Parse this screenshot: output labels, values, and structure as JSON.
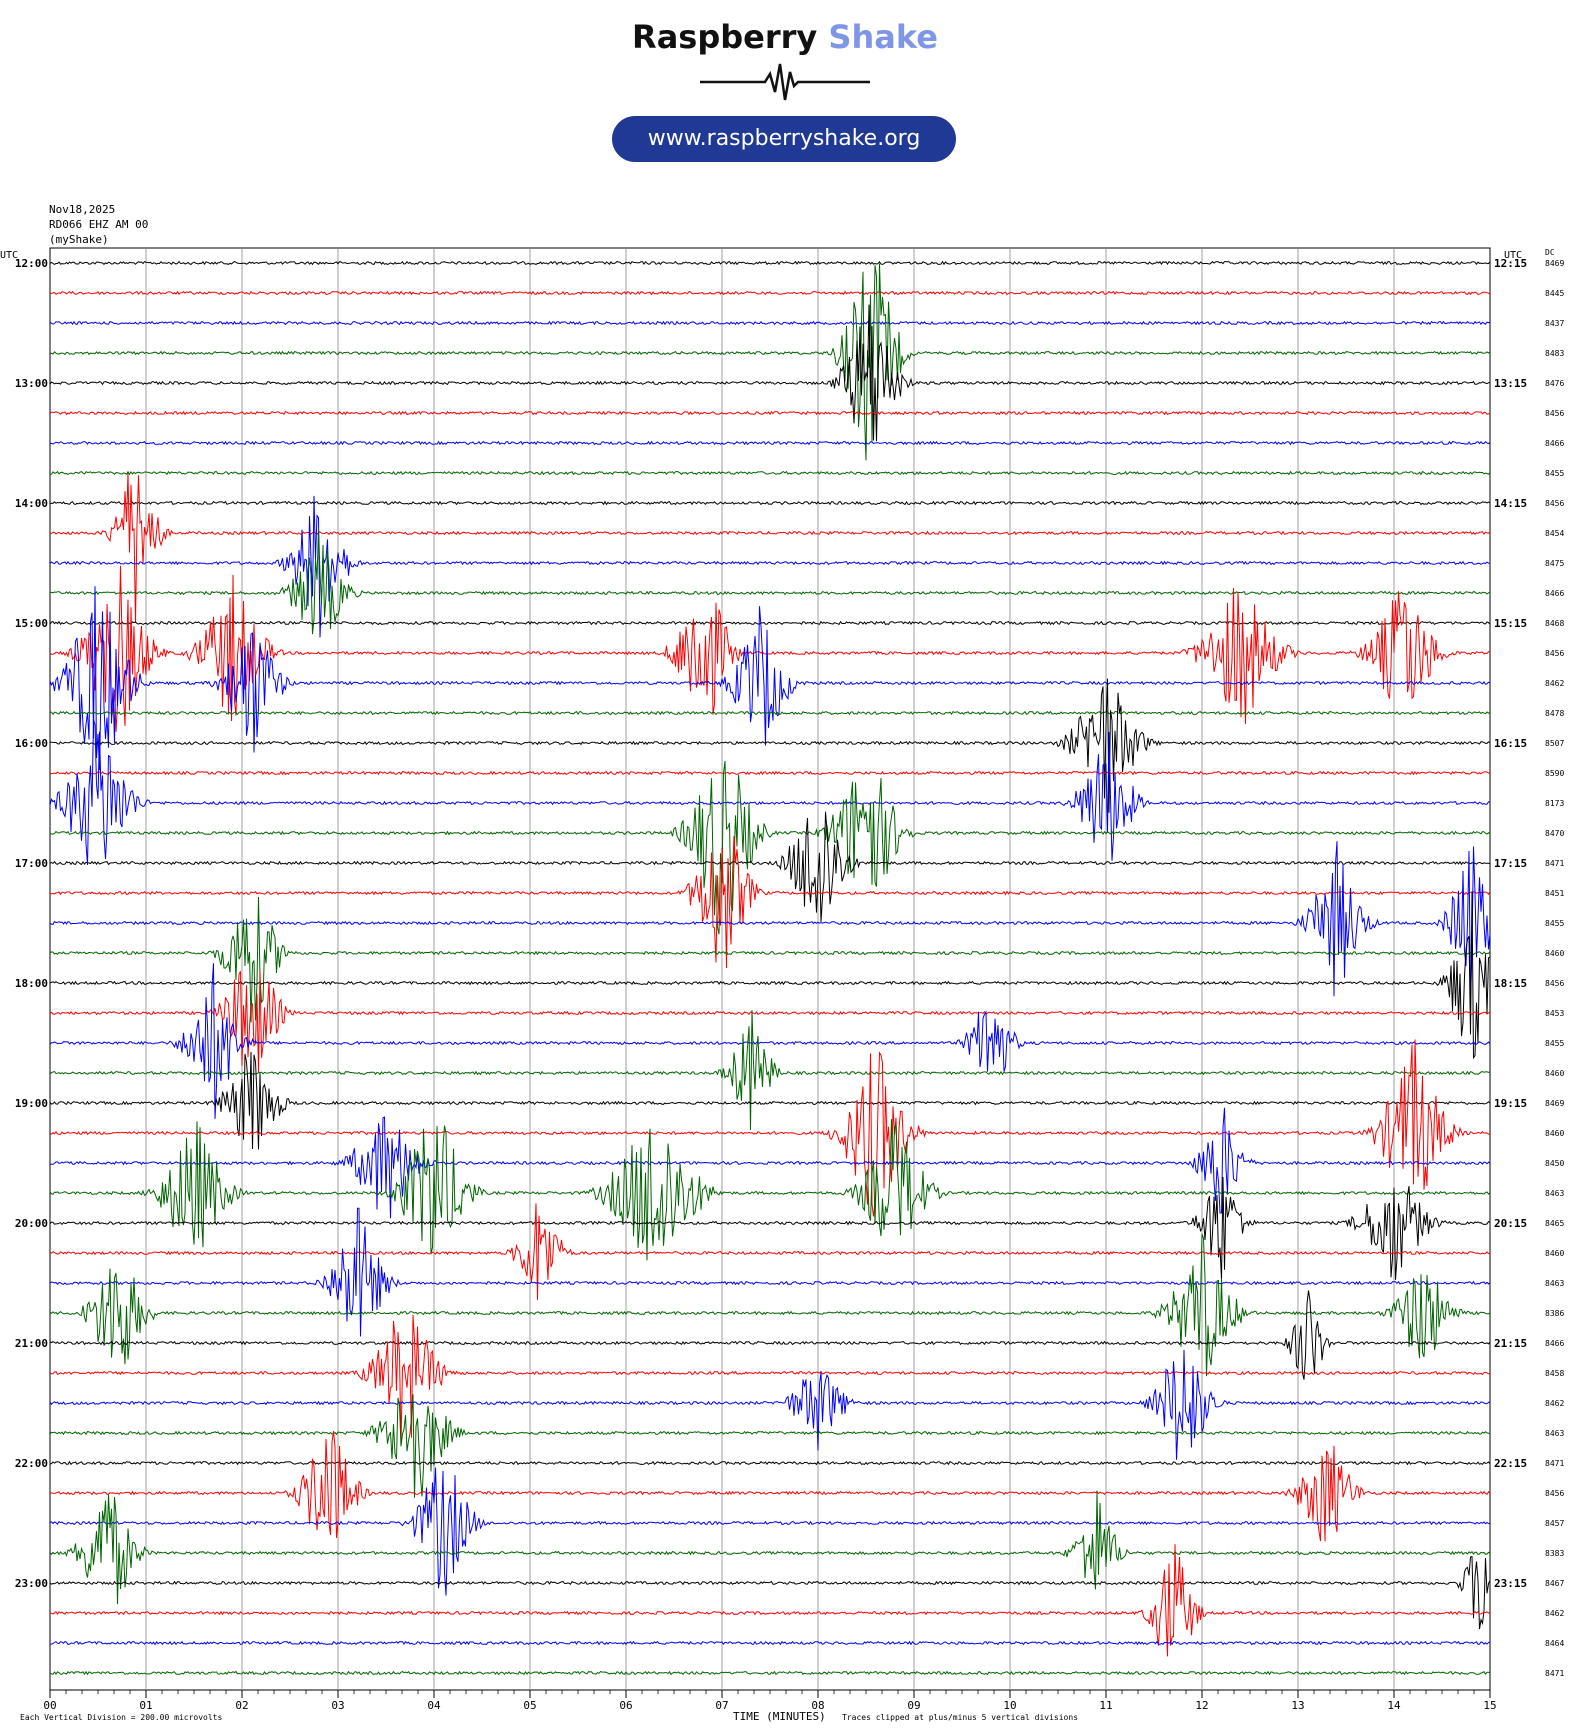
{
  "branding": {
    "title_part1": "Raspberry",
    "title_part2": "Shake",
    "url": "www.raspberryshake.org",
    "accent_color": "#7f96e6",
    "badge_color": "#1f3995"
  },
  "header": {
    "date": "Nov18,2025",
    "station": "RD066 EHZ AM 00",
    "network": "(myShake)"
  },
  "axis": {
    "left_label": "UTC",
    "right_label": "UTC",
    "dc_label": "DC",
    "x_label": "TIME (MINUTES)",
    "footer_left": "Each Vertical Division =  200.00 microvolts",
    "footer_right": "Traces clipped at plus/minus 5 vertical divisions"
  },
  "chart_data": {
    "type": "helicorder",
    "x_ticks": [
      "00",
      "01",
      "02",
      "03",
      "04",
      "05",
      "06",
      "07",
      "08",
      "09",
      "10",
      "11",
      "12",
      "13",
      "14",
      "15"
    ],
    "xlim_minutes": [
      0,
      15
    ],
    "grid": true,
    "colors": [
      "#000000",
      "#ff0000",
      "#0000ff",
      "#006400"
    ],
    "left_times": [
      "12:00",
      "13:00",
      "14:00",
      "15:00",
      "16:00",
      "17:00",
      "18:00",
      "19:00",
      "20:00",
      "21:00",
      "22:00",
      "23:00"
    ],
    "right_times": [
      "12:15",
      "13:15",
      "14:15",
      "15:15",
      "16:15",
      "17:15",
      "18:15",
      "19:15",
      "20:15",
      "21:15",
      "22:15",
      "23:15"
    ],
    "dc_values": [
      "8469",
      "8445",
      "8437",
      "8483",
      "8476",
      "8456",
      "8466",
      "8455",
      "8456",
      "8454",
      "8475",
      "8466",
      "8468",
      "8456",
      "8462",
      "8478",
      "8507",
      "8590",
      "8173",
      "8470",
      "8471",
      "8451",
      "8455",
      "8460",
      "8456",
      "8453",
      "8455",
      "8460",
      "8469",
      "8460",
      "8450",
      "8463",
      "8465",
      "8460",
      "8463",
      "8386",
      "8466",
      "8458",
      "8462",
      "8463",
      "8471",
      "8456",
      "8457",
      "8383",
      "8467",
      "8462",
      "8464",
      "8471"
    ],
    "events": [
      {
        "line": 3,
        "minute": 8.55,
        "amplitude": 8,
        "duration": 0.5
      },
      {
        "line": 4,
        "minute": 8.55,
        "amplitude": 6,
        "duration": 0.5
      },
      {
        "line": 9,
        "minute": 0.9,
        "amplitude": 6,
        "duration": 0.4
      },
      {
        "line": 10,
        "minute": 2.8,
        "amplitude": 5,
        "duration": 0.5
      },
      {
        "line": 11,
        "minute": 2.8,
        "amplitude": 4,
        "duration": 0.5
      },
      {
        "line": 13,
        "minute": 0.7,
        "amplitude": 6,
        "duration": 0.6
      },
      {
        "line": 13,
        "minute": 1.9,
        "amplitude": 5,
        "duration": 0.6
      },
      {
        "line": 14,
        "minute": 0.5,
        "amplitude": 7,
        "duration": 0.6
      },
      {
        "line": 14,
        "minute": 2.1,
        "amplitude": 5,
        "duration": 0.5
      },
      {
        "line": 13,
        "minute": 6.8,
        "amplitude": 6,
        "duration": 0.5
      },
      {
        "line": 14,
        "minute": 7.4,
        "amplitude": 5,
        "duration": 0.5
      },
      {
        "line": 13,
        "minute": 12.4,
        "amplitude": 5,
        "duration": 0.7
      },
      {
        "line": 13,
        "minute": 14.1,
        "amplitude": 5,
        "duration": 0.6
      },
      {
        "line": 16,
        "minute": 11.0,
        "amplitude": 5,
        "duration": 0.6
      },
      {
        "line": 18,
        "minute": 0.5,
        "amplitude": 6,
        "duration": 0.6
      },
      {
        "line": 18,
        "minute": 11.0,
        "amplitude": 5,
        "duration": 0.5
      },
      {
        "line": 19,
        "minute": 7.0,
        "amplitude": 7,
        "duration": 0.6
      },
      {
        "line": 19,
        "minute": 8.5,
        "amplitude": 6,
        "duration": 0.6
      },
      {
        "line": 20,
        "minute": 8.0,
        "amplitude": 6,
        "duration": 0.5
      },
      {
        "line": 21,
        "minute": 7.0,
        "amplitude": 6,
        "duration": 0.5
      },
      {
        "line": 22,
        "minute": 13.4,
        "amplitude": 5,
        "duration": 0.5
      },
      {
        "line": 22,
        "minute": 14.8,
        "amplitude": 6,
        "duration": 0.4
      },
      {
        "line": 23,
        "minute": 2.1,
        "amplitude": 5,
        "duration": 0.5
      },
      {
        "line": 24,
        "minute": 14.8,
        "amplitude": 6,
        "duration": 0.4
      },
      {
        "line": 25,
        "minute": 2.1,
        "amplitude": 5,
        "duration": 0.5
      },
      {
        "line": 26,
        "minute": 1.7,
        "amplitude": 5,
        "duration": 0.5
      },
      {
        "line": 26,
        "minute": 9.8,
        "amplitude": 4,
        "duration": 0.4
      },
      {
        "line": 27,
        "minute": 7.3,
        "amplitude": 4,
        "duration": 0.4
      },
      {
        "line": 28,
        "minute": 2.1,
        "amplitude": 4,
        "duration": 0.5
      },
      {
        "line": 29,
        "minute": 8.6,
        "amplitude": 6,
        "duration": 0.6
      },
      {
        "line": 29,
        "minute": 14.2,
        "amplitude": 6,
        "duration": 0.6
      },
      {
        "line": 30,
        "minute": 3.5,
        "amplitude": 4,
        "duration": 0.6
      },
      {
        "line": 30,
        "minute": 12.2,
        "amplitude": 4,
        "duration": 0.4
      },
      {
        "line": 31,
        "minute": 1.5,
        "amplitude": 5,
        "duration": 0.6
      },
      {
        "line": 31,
        "minute": 4.0,
        "amplitude": 6,
        "duration": 0.6
      },
      {
        "line": 31,
        "minute": 6.3,
        "amplitude": 6,
        "duration": 0.8
      },
      {
        "line": 31,
        "minute": 8.8,
        "amplitude": 5,
        "duration": 0.6
      },
      {
        "line": 32,
        "minute": 12.2,
        "amplitude": 4,
        "duration": 0.4
      },
      {
        "line": 32,
        "minute": 14.0,
        "amplitude": 4,
        "duration": 0.6
      },
      {
        "line": 33,
        "minute": 5.1,
        "amplitude": 4,
        "duration": 0.4
      },
      {
        "line": 34,
        "minute": 3.2,
        "amplitude": 5,
        "duration": 0.5
      },
      {
        "line": 35,
        "minute": 0.7,
        "amplitude": 5,
        "duration": 0.5
      },
      {
        "line": 35,
        "minute": 12.0,
        "amplitude": 5,
        "duration": 0.6
      },
      {
        "line": 35,
        "minute": 14.3,
        "amplitude": 4,
        "duration": 0.5
      },
      {
        "line": 36,
        "minute": 13.1,
        "amplitude": 4,
        "duration": 0.3
      },
      {
        "line": 37,
        "minute": 3.7,
        "amplitude": 5,
        "duration": 0.6
      },
      {
        "line": 38,
        "minute": 11.8,
        "amplitude": 5,
        "duration": 0.5
      },
      {
        "line": 38,
        "minute": 8.0,
        "amplitude": 3,
        "duration": 0.5
      },
      {
        "line": 39,
        "minute": 3.8,
        "amplitude": 5,
        "duration": 0.6
      },
      {
        "line": 41,
        "minute": 2.9,
        "amplitude": 5,
        "duration": 0.5
      },
      {
        "line": 41,
        "minute": 13.3,
        "amplitude": 4,
        "duration": 0.5
      },
      {
        "line": 42,
        "minute": 4.1,
        "amplitude": 5,
        "duration": 0.5
      },
      {
        "line": 43,
        "minute": 0.6,
        "amplitude": 5,
        "duration": 0.5
      },
      {
        "line": 43,
        "minute": 10.9,
        "amplitude": 4,
        "duration": 0.4
      },
      {
        "line": 44,
        "minute": 14.9,
        "amplitude": 4,
        "duration": 0.3
      },
      {
        "line": 45,
        "minute": 11.7,
        "amplitude": 5,
        "duration": 0.4
      }
    ]
  }
}
